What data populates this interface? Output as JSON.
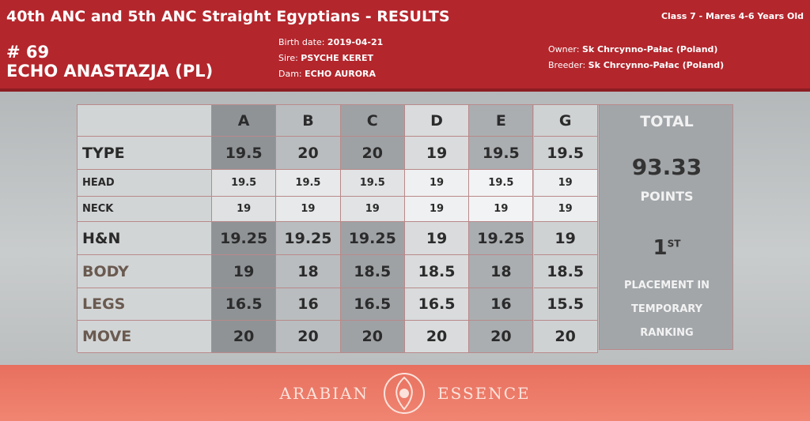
{
  "header": {
    "title": "40th ANC and 5th ANC Straight Egyptians - RESULTS",
    "class_info": "Class 7 - Mares 4-6 Years Old",
    "number": "# 69",
    "name": "ECHO ANASTAZJA (PL)",
    "birth_date": {
      "label": "Birth date:",
      "value": "2019-04-21"
    },
    "sire": {
      "label": "Sire:",
      "value": "PSYCHE KERET"
    },
    "dam": {
      "label": "Dam:",
      "value": "ECHO AURORA"
    },
    "owner": {
      "label": "Owner:",
      "value": "Sk Chrcynno-Pałac (Poland)"
    },
    "breeder": {
      "label": "Breeder:",
      "value": "Sk Chrcynno-Pałac (Poland)"
    }
  },
  "table": {
    "columns": [
      "A",
      "B",
      "C",
      "D",
      "E",
      "G"
    ],
    "rows": [
      {
        "label": "TYPE",
        "scores": [
          19.5,
          20,
          20,
          19,
          19.5,
          19.5
        ]
      },
      {
        "label": "HEAD",
        "scores": [
          19.5,
          19.5,
          19.5,
          19,
          19.5,
          19
        ]
      },
      {
        "label": "NECK",
        "scores": [
          19,
          19,
          19,
          19,
          19,
          19
        ]
      },
      {
        "label": "H&N",
        "scores": [
          19.25,
          19.25,
          19.25,
          19,
          19.25,
          19
        ]
      },
      {
        "label": "BODY",
        "scores": [
          19,
          18,
          18.5,
          18.5,
          18,
          18.5
        ]
      },
      {
        "label": "LEGS",
        "scores": [
          16.5,
          16,
          16.5,
          16.5,
          16,
          15.5
        ]
      },
      {
        "label": "MOVE",
        "scores": [
          20,
          20,
          20,
          20,
          20,
          20
        ]
      }
    ]
  },
  "total": {
    "title": "TOTAL",
    "score": 93.33,
    "unit": "POINTS",
    "place": 1,
    "place_suffix": "ST",
    "note": [
      "PLACEMENT IN",
      "TEMPORARY",
      "RANKING"
    ]
  },
  "footer": {
    "left": "ARABIAN",
    "right": "ESSENCE"
  }
}
